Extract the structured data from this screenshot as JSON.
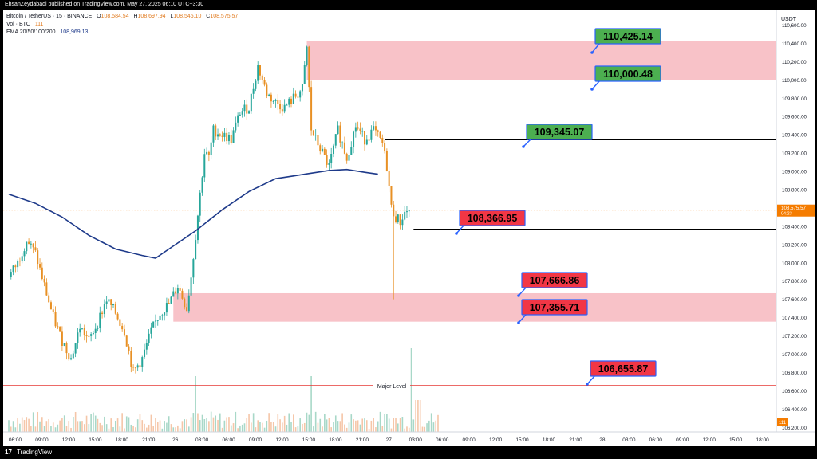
{
  "header": {
    "published_by": "EhsanZeydabadi published on TradingView.com, May 27, 2025 06:10 UTC+3:30"
  },
  "legend": {
    "symbol": "Bitcoin / TetherUS · 15 · BINANCE",
    "open_label": "O",
    "open": "108,584.54",
    "high_label": "H",
    "high": "108,697.94",
    "low_label": "L",
    "low": "108,546.10",
    "close_label": "C",
    "close": "108,575.57",
    "vol_label": "Vol · BTC",
    "vol_value": "111",
    "ema_label": "EMA 20/50/100/200",
    "ema_value": "108,969.13"
  },
  "footer": {
    "logo": "TradingView",
    "logo_glyph": "17"
  },
  "colors": {
    "up": "#26a69a",
    "down": "#e89024",
    "ema": "#1e3a8a",
    "zone": "#f8c2c8",
    "green_label": "#4caf50",
    "red_label": "#f23645",
    "major_line": "#e53935",
    "black_line": "#000000",
    "current_price_bg": "#f57c00"
  },
  "chart_data": {
    "type": "line",
    "description_series": "BTC/USDT 15m candlesticks with EMA 200",
    "currency_label": "USDT",
    "ylim": [
      106150,
      110700
    ],
    "y_ticks": [
      "106,200.00",
      "106,400.00",
      "106,600.00",
      "106,800.00",
      "107,000.00",
      "107,200.00",
      "107,400.00",
      "107,600.00",
      "107,800.00",
      "108,000.00",
      "108,200.00",
      "108,400.00",
      "108,600.00",
      "108,800.00",
      "109,000.00",
      "109,200.00",
      "109,400.00",
      "109,600.00",
      "109,800.00",
      "110,000.00",
      "110,200.00",
      "110,400.00",
      "110,600.00"
    ],
    "x_ticks": [
      "06:00",
      "09:00",
      "12:00",
      "15:00",
      "18:00",
      "21:00",
      "26",
      "03:00",
      "06:00",
      "09:00",
      "12:00",
      "15:00",
      "18:00",
      "21:00",
      "27",
      "03:00",
      "06:00",
      "09:00",
      "12:00",
      "15:00",
      "18:00",
      "21:00",
      "28",
      "03:00",
      "06:00",
      "09:00",
      "12:00",
      "15:00",
      "18:00"
    ],
    "x_tick_unit_hours": 3,
    "last_data_hour": 48.5,
    "current_price": "108,575.57",
    "countdown": "04:23",
    "volume_badge": "111",
    "price_series_approx": [
      [
        0,
        107850
      ],
      [
        1,
        108000
      ],
      [
        2,
        108250
      ],
      [
        3,
        108100
      ],
      [
        4,
        107750
      ],
      [
        5,
        107400
      ],
      [
        6,
        107150
      ],
      [
        7,
        106950
      ],
      [
        8,
        107300
      ],
      [
        9,
        107150
      ],
      [
        10,
        107350
      ],
      [
        11,
        107600
      ],
      [
        12,
        107450
      ],
      [
        13,
        107250
      ],
      [
        14,
        106800
      ],
      [
        15,
        106950
      ],
      [
        16,
        107250
      ],
      [
        17,
        107450
      ],
      [
        18,
        107550
      ],
      [
        19,
        107750
      ],
      [
        20,
        107500
      ],
      [
        20.5,
        107850
      ],
      [
        21,
        108300
      ],
      [
        21.5,
        108750
      ],
      [
        22,
        109200
      ],
      [
        22.5,
        109150
      ],
      [
        23,
        109450
      ],
      [
        24,
        109400
      ],
      [
        25,
        109350
      ],
      [
        26,
        109650
      ],
      [
        27,
        109700
      ],
      [
        28,
        110150
      ],
      [
        29,
        109850
      ],
      [
        30,
        109750
      ],
      [
        31,
        109700
      ],
      [
        32,
        109800
      ],
      [
        33,
        109900
      ],
      [
        33.5,
        110350
      ],
      [
        34,
        109450
      ],
      [
        35,
        109250
      ],
      [
        36,
        109050
      ],
      [
        37,
        109450
      ],
      [
        38,
        109150
      ],
      [
        39,
        109500
      ],
      [
        40,
        109350
      ],
      [
        41,
        109450
      ],
      [
        42,
        109300
      ],
      [
        42.5,
        109050
      ],
      [
        43,
        108600
      ],
      [
        43.5,
        108500
      ],
      [
        44,
        108450
      ],
      [
        44.5,
        108550
      ],
      [
        45,
        108580
      ]
    ],
    "ema200_series_approx": [
      [
        0,
        108750
      ],
      [
        3,
        108650
      ],
      [
        6,
        108500
      ],
      [
        9,
        108300
      ],
      [
        12,
        108150
      ],
      [
        15,
        108080
      ],
      [
        16.5,
        108050
      ],
      [
        18,
        108150
      ],
      [
        21,
        108350
      ],
      [
        24,
        108580
      ],
      [
        27,
        108780
      ],
      [
        30,
        108920
      ],
      [
        32,
        108950
      ],
      [
        34,
        108980
      ],
      [
        36,
        109010
      ],
      [
        38,
        109020
      ],
      [
        40,
        108990
      ],
      [
        41.5,
        108969
      ]
    ],
    "levels": [
      {
        "value": 110425.14,
        "label": "110,425.14",
        "type": "green"
      },
      {
        "value": 110000.48,
        "label": "110,000.48",
        "type": "green"
      },
      {
        "value": 109345.07,
        "label": "109,345.07",
        "type": "green"
      },
      {
        "value": 108366.95,
        "label": "108,366.95",
        "type": "red"
      },
      {
        "value": 107666.86,
        "label": "107,666.86",
        "type": "red"
      },
      {
        "value": 107355.71,
        "label": "107,355.71",
        "type": "red"
      },
      {
        "value": 106655.87,
        "label": "106,655.87",
        "type": "red"
      }
    ],
    "zones": [
      {
        "from": 110000.48,
        "to": 110425.14,
        "start_hour": 33.5
      },
      {
        "from": 107355.71,
        "to": 107666.86,
        "start_hour": 18.5
      }
    ],
    "major_level": {
      "value": 106655.87,
      "label": "Major Level"
    }
  }
}
